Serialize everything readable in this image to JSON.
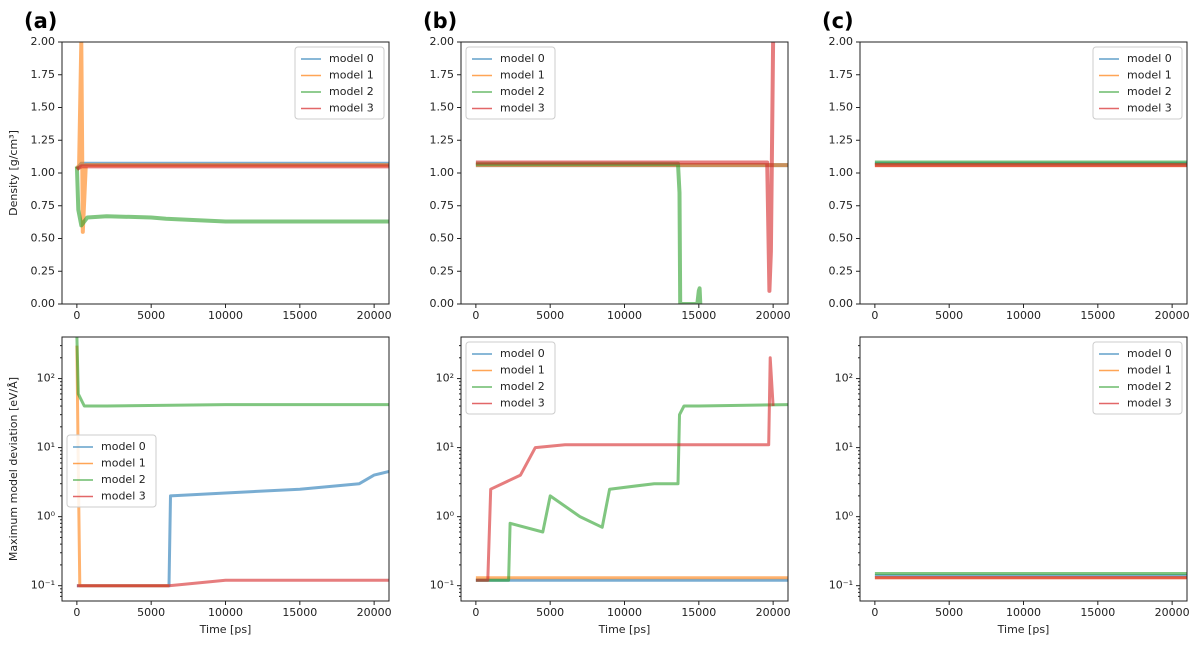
{
  "figure": {
    "panel_labels": [
      "(a)",
      "(b)",
      "(c)"
    ],
    "colors": {
      "model 0": "#1f77b4",
      "model 1": "#ff7f0e",
      "model 2": "#2ca02c",
      "model 3": "#d62728"
    }
  },
  "chart_data": [
    {
      "panel": "(a)",
      "type": "line",
      "title": "",
      "xlabel": "",
      "ylabel": "Density [g/cm³]",
      "xlim": [
        -1000,
        21000
      ],
      "ylim": [
        0,
        2.0
      ],
      "yscale": "linear",
      "xticks": [
        0,
        5000,
        10000,
        15000,
        20000
      ],
      "yticks": [
        "0.00",
        "0.25",
        "0.50",
        "0.75",
        "1.00",
        "1.25",
        "1.50",
        "1.75",
        "2.00"
      ],
      "legend": "top-right",
      "series": [
        {
          "name": "model 0",
          "x": [
            0,
            300,
            1000,
            20000,
            21000
          ],
          "y": [
            1.03,
            1.07,
            1.07,
            1.07,
            1.07
          ]
        },
        {
          "name": "model 1",
          "x": [
            0,
            150,
            300,
            400,
            600,
            1000,
            21000
          ],
          "y": [
            1.03,
            1.06,
            2.0,
            0.55,
            1.06,
            1.06,
            1.06
          ]
        },
        {
          "name": "model 2",
          "x": [
            0,
            100,
            300,
            700,
            2000,
            5000,
            6000,
            10000,
            15000,
            21000
          ],
          "y": [
            1.05,
            0.72,
            0.6,
            0.66,
            0.67,
            0.66,
            0.65,
            0.63,
            0.63,
            0.63
          ]
        },
        {
          "name": "model 3",
          "x": [
            0,
            300,
            1000,
            21000
          ],
          "y": [
            1.03,
            1.05,
            1.05,
            1.05
          ]
        }
      ]
    },
    {
      "panel": "(b)",
      "type": "line",
      "title": "",
      "xlabel": "",
      "ylabel": "",
      "xlim": [
        -1000,
        21000
      ],
      "ylim": [
        0,
        2.0
      ],
      "yscale": "linear",
      "xticks": [
        0,
        5000,
        10000,
        15000,
        20000
      ],
      "yticks": [
        "0.00",
        "0.25",
        "0.50",
        "0.75",
        "1.00",
        "1.25",
        "1.50",
        "1.75",
        "2.00"
      ],
      "legend": "top-left",
      "series": [
        {
          "name": "model 0",
          "x": [
            0,
            21000
          ],
          "y": [
            1.06,
            1.06
          ]
        },
        {
          "name": "model 1",
          "x": [
            0,
            21000
          ],
          "y": [
            1.06,
            1.06
          ]
        },
        {
          "name": "model 2",
          "x": [
            0,
            13600,
            13700,
            13750,
            14900,
            15000,
            15050,
            15100
          ],
          "y": [
            1.07,
            1.07,
            0.85,
            0.0,
            0.0,
            0.1,
            0.12,
            0.0
          ]
        },
        {
          "name": "model 3",
          "x": [
            0,
            19600,
            19750,
            19850,
            20000,
            20100
          ],
          "y": [
            1.08,
            1.08,
            0.1,
            0.4,
            2.0,
            2.0
          ]
        }
      ]
    },
    {
      "panel": "(c)",
      "type": "line",
      "title": "",
      "xlabel": "",
      "ylabel": "",
      "xlim": [
        -1000,
        21000
      ],
      "ylim": [
        0,
        2.0
      ],
      "yscale": "linear",
      "xticks": [
        0,
        5000,
        10000,
        15000,
        20000
      ],
      "yticks": [
        "0.00",
        "0.25",
        "0.50",
        "0.75",
        "1.00",
        "1.25",
        "1.50",
        "1.75",
        "2.00"
      ],
      "legend": "top-right",
      "series": [
        {
          "name": "model 0",
          "x": [
            0,
            21000
          ],
          "y": [
            1.07,
            1.07
          ]
        },
        {
          "name": "model 1",
          "x": [
            0,
            21000
          ],
          "y": [
            1.06,
            1.06
          ]
        },
        {
          "name": "model 2",
          "x": [
            0,
            21000
          ],
          "y": [
            1.08,
            1.08
          ]
        },
        {
          "name": "model 3",
          "x": [
            0,
            21000
          ],
          "y": [
            1.06,
            1.06
          ]
        }
      ]
    },
    {
      "panel": "(a)",
      "type": "line",
      "title": "",
      "xlabel": "Time [ps]",
      "ylabel": "Maximum model deviation [eV/Å]",
      "xlim": [
        -1000,
        21000
      ],
      "ylim": [
        0.06,
        400
      ],
      "yscale": "log",
      "xticks": [
        0,
        5000,
        10000,
        15000,
        20000
      ],
      "yticks": [
        "10⁻¹",
        "10⁰",
        "10¹",
        "10²"
      ],
      "legend": "center-left",
      "series": [
        {
          "name": "model 0",
          "x": [
            0,
            6200,
            6300,
            10000,
            15000,
            19000,
            20000,
            21000
          ],
          "y": [
            0.1,
            0.1,
            2.0,
            2.2,
            2.5,
            3.0,
            4.0,
            4.5
          ]
        },
        {
          "name": "model 1",
          "x": [
            0,
            100,
            200,
            6200
          ],
          "y": [
            300,
            5,
            0.1,
            0.1
          ]
        },
        {
          "name": "model 2",
          "x": [
            0,
            100,
            500,
            2000,
            10000,
            21000
          ],
          "y": [
            400,
            60,
            40,
            40,
            42,
            42
          ]
        },
        {
          "name": "model 3",
          "x": [
            0,
            6200,
            10000,
            21000
          ],
          "y": [
            0.1,
            0.1,
            0.12,
            0.12
          ]
        }
      ]
    },
    {
      "panel": "(b)",
      "type": "line",
      "title": "",
      "xlabel": "Time [ps]",
      "ylabel": "",
      "xlim": [
        -1000,
        21000
      ],
      "ylim": [
        0.06,
        400
      ],
      "yscale": "log",
      "xticks": [
        0,
        5000,
        10000,
        15000,
        20000
      ],
      "yticks": [
        "10⁻¹",
        "10⁰",
        "10¹",
        "10²"
      ],
      "legend": "top-left",
      "series": [
        {
          "name": "model 0",
          "x": [
            0,
            21000
          ],
          "y": [
            0.12,
            0.12
          ]
        },
        {
          "name": "model 1",
          "x": [
            0,
            21000
          ],
          "y": [
            0.13,
            0.13
          ]
        },
        {
          "name": "model 2",
          "x": [
            0,
            2200,
            2300,
            4500,
            5000,
            7000,
            8500,
            9000,
            12000,
            13600,
            13700,
            14000,
            15000,
            21000
          ],
          "y": [
            0.12,
            0.12,
            0.8,
            0.6,
            2.0,
            1.0,
            0.7,
            2.5,
            3.0,
            3.0,
            30,
            40,
            40,
            42
          ]
        },
        {
          "name": "model 3",
          "x": [
            0,
            800,
            1000,
            3000,
            4000,
            6000,
            10000,
            19500,
            19700,
            19800,
            20000
          ],
          "y": [
            0.12,
            0.12,
            2.5,
            4.0,
            10,
            11,
            11,
            11,
            11,
            200,
            40
          ]
        }
      ]
    },
    {
      "panel": "(c)",
      "type": "line",
      "title": "",
      "xlabel": "Time [ps]",
      "ylabel": "",
      "xlim": [
        -1000,
        21000
      ],
      "ylim": [
        0.06,
        400
      ],
      "yscale": "log",
      "xticks": [
        0,
        5000,
        10000,
        15000,
        20000
      ],
      "yticks": [
        "10⁻¹",
        "10⁰",
        "10¹",
        "10²"
      ],
      "legend": "top-right",
      "series": [
        {
          "name": "model 0",
          "x": [
            0,
            21000
          ],
          "y": [
            0.14,
            0.14
          ]
        },
        {
          "name": "model 1",
          "x": [
            0,
            21000
          ],
          "y": [
            0.13,
            0.13
          ]
        },
        {
          "name": "model 2",
          "x": [
            0,
            21000
          ],
          "y": [
            0.15,
            0.15
          ]
        },
        {
          "name": "model 3",
          "x": [
            0,
            21000
          ],
          "y": [
            0.13,
            0.13
          ]
        }
      ]
    }
  ]
}
